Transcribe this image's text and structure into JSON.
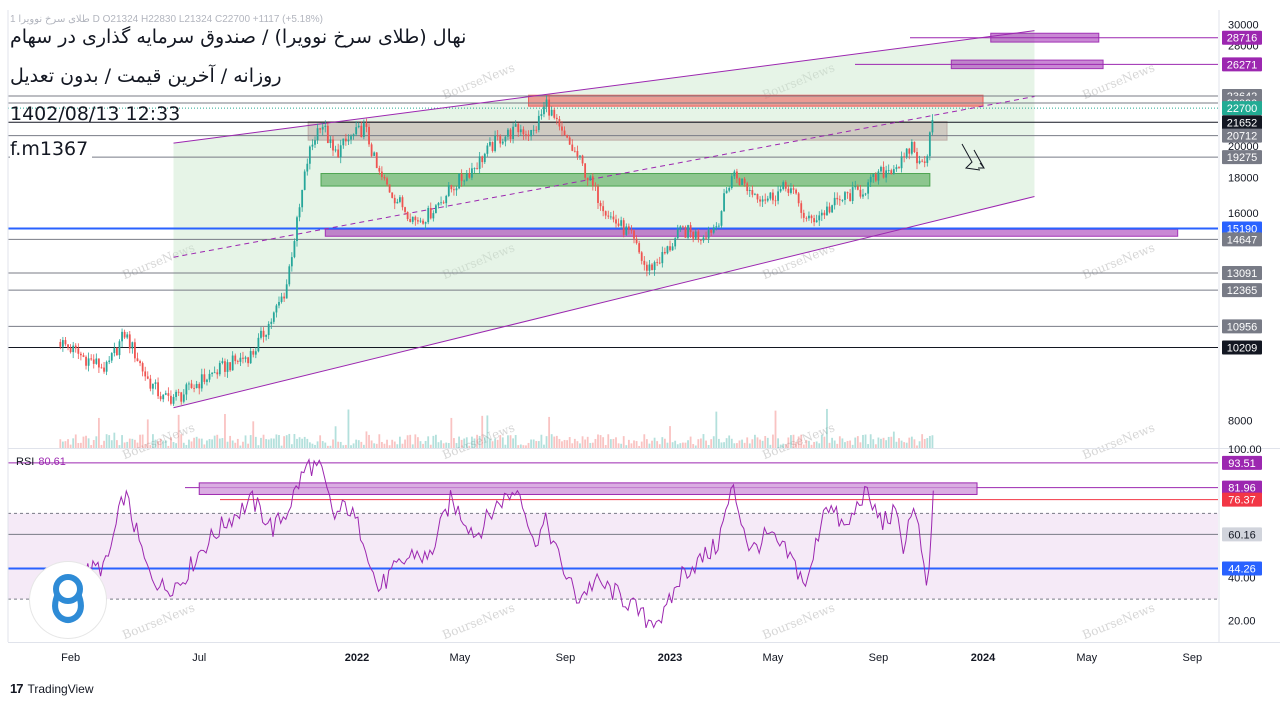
{
  "header": {
    "symbol_line": "1 طلای سرخ نوویرا D  O21324  H22830  L21324  C22700  +1117 (+5.18%)",
    "title": "نهال (طلای سرخ نوویرا) / صندوق سرمایه گذاری در سهام",
    "subtitle": "روزانه / آخرین قیمت / بدون تعدیل",
    "datetime": "1402/08/13 12:33",
    "author": "f.m1367"
  },
  "footer": {
    "brand": "TradingView",
    "logo_text": "17"
  },
  "watermark": "BourseNews",
  "rsi": {
    "label": "RSI",
    "value": "80.61"
  },
  "colors": {
    "channel": "#9c27b0",
    "channel_fill": "#c8e6c9",
    "support_blue": "#2962ff",
    "red_zone": "#ef9a9a",
    "green_zone": "#a5d6a7",
    "violet_zone": "#ce93d8",
    "candle_up": "#26a69a",
    "candle_down": "#ef5350",
    "rsi_line": "#9c27b0",
    "rsi_band": "#f3e5f5"
  },
  "chart_data": [
    {
      "type": "candlestick",
      "title": "نهال (طلای سرخ نوویرا) / صندوق سرمایه گذاری در سهام",
      "x_tick_labels": [
        "Feb",
        "Jul",
        "2022",
        "May",
        "Sep",
        "2023",
        "May",
        "Sep",
        "2024",
        "May",
        "Sep"
      ],
      "x_tick_dates": [
        "2021-02-01",
        "2021-07-01",
        "2022-01-01",
        "2022-05-01",
        "2022-09-01",
        "2023-01-01",
        "2023-05-01",
        "2023-09-01",
        "2024-01-01",
        "2024-05-01",
        "2024-09-01"
      ],
      "y_tick_labels": [
        "30000",
        "28000",
        "20000",
        "18000",
        "16000",
        "8000"
      ],
      "y_scale": "log",
      "ylim": [
        7300,
        31500
      ],
      "xlim": [
        "2020-11-20",
        "2024-10-01"
      ],
      "price_levels": [
        {
          "value": "28716",
          "color": "#9c27b0"
        },
        {
          "value": "26271",
          "color": "#9c27b0"
        },
        {
          "value": "23642",
          "color": "#787b86"
        },
        {
          "value": "23090",
          "color": "#787b86"
        },
        {
          "value": "22700",
          "color": "#22ab94"
        },
        {
          "value": "21652",
          "color": "#131722"
        },
        {
          "value": "20712",
          "color": "#787b86"
        },
        {
          "value": "19275",
          "color": "#787b86"
        },
        {
          "value": "15190",
          "color": "#2962ff"
        },
        {
          "value": "14647",
          "color": "#787b86"
        },
        {
          "value": "13091",
          "color": "#787b86"
        },
        {
          "value": "12365",
          "color": "#787b86"
        },
        {
          "value": "10956",
          "color": "#787b86"
        },
        {
          "value": "10209",
          "color": "#131722"
        }
      ],
      "series": [
        {
          "name": "Close",
          "x": [
            "2021-01-20",
            "2021-02-15",
            "2021-03-15",
            "2021-04-05",
            "2021-05-01",
            "2021-05-20",
            "2021-06-10",
            "2021-07-01",
            "2021-08-01",
            "2021-09-01",
            "2021-09-25",
            "2021-10-10",
            "2021-10-25",
            "2021-11-05",
            "2021-11-20",
            "2021-12-05",
            "2021-12-20",
            "2022-01-10",
            "2022-01-25",
            "2022-02-15",
            "2022-03-10",
            "2022-03-25",
            "2022-04-20",
            "2022-05-20",
            "2022-06-15",
            "2022-07-10",
            "2022-07-25",
            "2022-08-10",
            "2022-08-25",
            "2022-09-15",
            "2022-10-05",
            "2022-10-25",
            "2022-11-15",
            "2022-12-05",
            "2022-12-25",
            "2023-01-15",
            "2023-02-05",
            "2023-02-25",
            "2023-03-15",
            "2023-04-05",
            "2023-04-25",
            "2023-05-20",
            "2023-06-10",
            "2023-07-01",
            "2023-07-25",
            "2023-08-15",
            "2023-09-05",
            "2023-09-20",
            "2023-10-01",
            "2023-10-10",
            "2023-10-20",
            "2023-10-28",
            "2023-11-04"
          ],
          "values": [
            10400,
            9900,
            9500,
            10700,
            9200,
            8600,
            8700,
            9100,
            9600,
            10000,
            11300,
            12400,
            15900,
            19300,
            21800,
            19400,
            20300,
            21300,
            18300,
            16800,
            15600,
            15900,
            17300,
            18800,
            20500,
            21200,
            20800,
            23100,
            21000,
            19300,
            17200,
            15700,
            14900,
            13200,
            13900,
            15100,
            14800,
            15400,
            18300,
            17200,
            16800,
            17500,
            15500,
            16100,
            16900,
            17300,
            18300,
            18700,
            19000,
            20100,
            18600,
            19700,
            22700
          ]
        }
      ],
      "channel": {
        "upper": [
          {
            "x": "2021-06-01",
            "y": 20200
          },
          {
            "x": "2024-03-01",
            "y": 29400
          }
        ],
        "lower": [
          {
            "x": "2021-06-01",
            "y": 8350
          },
          {
            "x": "2024-03-01",
            "y": 16900
          }
        ],
        "mid": [
          {
            "x": "2021-06-01",
            "y": 13800
          },
          {
            "x": "2024-03-01",
            "y": 23600
          }
        ]
      },
      "zones": [
        {
          "color": "#9c27b0",
          "x": [
            "2024-01-10",
            "2024-05-15"
          ],
          "y": [
            28300,
            29150
          ]
        },
        {
          "color": "#9c27b0",
          "x": [
            "2023-11-25",
            "2024-05-20"
          ],
          "y": [
            25900,
            26650
          ]
        },
        {
          "color": "#ef5350",
          "x": [
            "2022-07-20",
            "2024-01-01"
          ],
          "y": [
            22850,
            23700
          ]
        },
        {
          "color": "#bcaaa4",
          "x": [
            "2021-11-05",
            "2023-11-20"
          ],
          "y": [
            20400,
            21700
          ]
        },
        {
          "color": "#43a047",
          "x": [
            "2021-11-20",
            "2023-10-31"
          ],
          "y": [
            17500,
            18250
          ]
        },
        {
          "color": "#9c27b0",
          "x": [
            "2021-11-25",
            "2024-08-15"
          ],
          "y": [
            14800,
            15150
          ]
        }
      ]
    },
    {
      "type": "line",
      "title": "RSI",
      "y_tick_labels": [
        "100.00",
        "40.00",
        "20.00"
      ],
      "ylim": [
        10,
        100
      ],
      "rsi_levels": [
        {
          "value": "93.51",
          "color": "#9c27b0"
        },
        {
          "value": "81.96",
          "color": "#9c27b0"
        },
        {
          "value": "76.37",
          "color": "#f23645"
        },
        {
          "value": "60.16",
          "color": "#787b86"
        },
        {
          "value": "44.26",
          "color": "#2962ff"
        }
      ],
      "band": [
        30,
        70
      ],
      "zone": {
        "x": [
          "2021-07-01",
          "2023-12-25"
        ],
        "y": [
          78.8,
          84.2
        ]
      },
      "series": [
        {
          "name": "RSI",
          "x": [
            "2021-02-15",
            "2021-03-15",
            "2021-04-05",
            "2021-05-01",
            "2021-05-20",
            "2021-06-10",
            "2021-07-01",
            "2021-08-01",
            "2021-09-01",
            "2021-09-25",
            "2021-10-10",
            "2021-10-25",
            "2021-11-05",
            "2021-11-20",
            "2021-12-05",
            "2021-12-20",
            "2022-01-10",
            "2022-01-25",
            "2022-02-15",
            "2022-03-10",
            "2022-03-25",
            "2022-04-20",
            "2022-05-20",
            "2022-06-15",
            "2022-07-10",
            "2022-07-25",
            "2022-08-10",
            "2022-08-25",
            "2022-09-15",
            "2022-10-05",
            "2022-10-25",
            "2022-11-15",
            "2022-12-05",
            "2022-12-25",
            "2023-01-15",
            "2023-02-05",
            "2023-02-25",
            "2023-03-15",
            "2023-04-05",
            "2023-04-25",
            "2023-05-20",
            "2023-06-10",
            "2023-07-01",
            "2023-07-25",
            "2023-08-15",
            "2023-09-05",
            "2023-09-20",
            "2023-10-01",
            "2023-10-10",
            "2023-10-20",
            "2023-10-28",
            "2023-11-04"
          ],
          "values": [
            42,
            46,
            80,
            44,
            35,
            38,
            52,
            66,
            76,
            63,
            70,
            84,
            93,
            90,
            68,
            74,
            58,
            34,
            44,
            52,
            48,
            76,
            60,
            75,
            82,
            56,
            66,
            48,
            30,
            38,
            34,
            28,
            20,
            22,
            42,
            48,
            55,
            82,
            52,
            60,
            50,
            36,
            76,
            62,
            80,
            66,
            70,
            54,
            74,
            58,
            28,
            80.61
          ]
        }
      ]
    }
  ]
}
